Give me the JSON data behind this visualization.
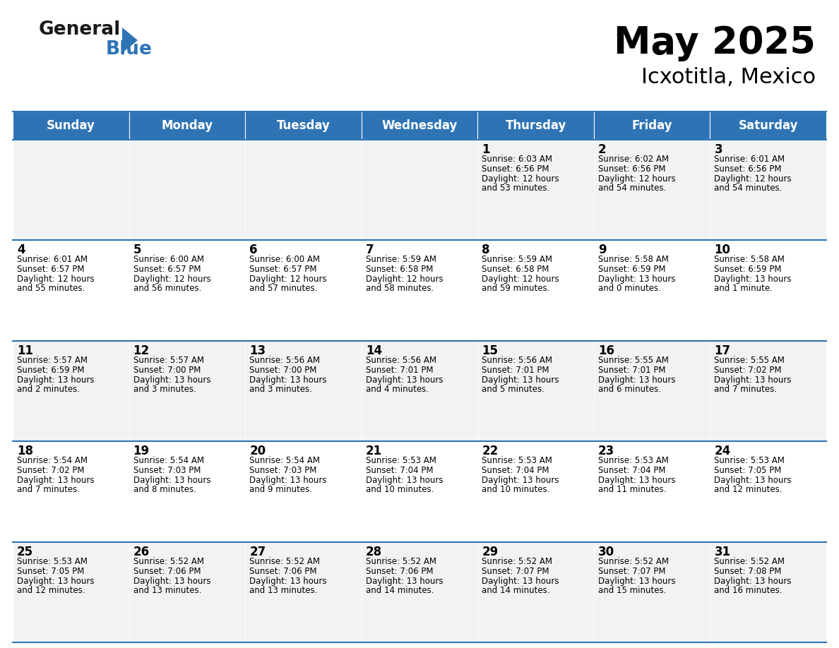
{
  "title": "May 2025",
  "subtitle": "Icxotitla, Mexico",
  "header_bg": "#2E74B5",
  "header_text_color": "#FFFFFF",
  "cell_bg_odd": "#F2F2F2",
  "cell_bg_even": "#FFFFFF",
  "border_color": "#2E74B5",
  "days_of_week": [
    "Sunday",
    "Monday",
    "Tuesday",
    "Wednesday",
    "Thursday",
    "Friday",
    "Saturday"
  ],
  "calendar_data": [
    [
      "",
      "",
      "",
      "",
      "1",
      "2",
      "3"
    ],
    [
      "4",
      "5",
      "6",
      "7",
      "8",
      "9",
      "10"
    ],
    [
      "11",
      "12",
      "13",
      "14",
      "15",
      "16",
      "17"
    ],
    [
      "18",
      "19",
      "20",
      "21",
      "22",
      "23",
      "24"
    ],
    [
      "25",
      "26",
      "27",
      "28",
      "29",
      "30",
      "31"
    ]
  ],
  "sun_data": [
    [
      "",
      "",
      "",
      "",
      "6:03 AM",
      "6:02 AM",
      "6:01 AM"
    ],
    [
      "6:01 AM",
      "6:00 AM",
      "6:00 AM",
      "5:59 AM",
      "5:59 AM",
      "5:58 AM",
      "5:58 AM"
    ],
    [
      "5:57 AM",
      "5:57 AM",
      "5:56 AM",
      "5:56 AM",
      "5:56 AM",
      "5:55 AM",
      "5:55 AM"
    ],
    [
      "5:54 AM",
      "5:54 AM",
      "5:54 AM",
      "5:53 AM",
      "5:53 AM",
      "5:53 AM",
      "5:53 AM"
    ],
    [
      "5:53 AM",
      "5:52 AM",
      "5:52 AM",
      "5:52 AM",
      "5:52 AM",
      "5:52 AM",
      "5:52 AM"
    ]
  ],
  "set_data": [
    [
      "",
      "",
      "",
      "",
      "6:56 PM",
      "6:56 PM",
      "6:56 PM"
    ],
    [
      "6:57 PM",
      "6:57 PM",
      "6:57 PM",
      "6:58 PM",
      "6:58 PM",
      "6:59 PM",
      "6:59 PM"
    ],
    [
      "6:59 PM",
      "7:00 PM",
      "7:00 PM",
      "7:01 PM",
      "7:01 PM",
      "7:01 PM",
      "7:02 PM"
    ],
    [
      "7:02 PM",
      "7:03 PM",
      "7:03 PM",
      "7:04 PM",
      "7:04 PM",
      "7:04 PM",
      "7:05 PM"
    ],
    [
      "7:05 PM",
      "7:06 PM",
      "7:06 PM",
      "7:06 PM",
      "7:07 PM",
      "7:07 PM",
      "7:08 PM"
    ]
  ],
  "daylight_data": [
    [
      "",
      "",
      "",
      "",
      "12 hours\nand 53 minutes.",
      "12 hours\nand 54 minutes.",
      "12 hours\nand 54 minutes."
    ],
    [
      "12 hours\nand 55 minutes.",
      "12 hours\nand 56 minutes.",
      "12 hours\nand 57 minutes.",
      "12 hours\nand 58 minutes.",
      "12 hours\nand 59 minutes.",
      "13 hours\nand 0 minutes.",
      "13 hours\nand 1 minute."
    ],
    [
      "13 hours\nand 2 minutes.",
      "13 hours\nand 3 minutes.",
      "13 hours\nand 3 minutes.",
      "13 hours\nand 4 minutes.",
      "13 hours\nand 5 minutes.",
      "13 hours\nand 6 minutes.",
      "13 hours\nand 7 minutes."
    ],
    [
      "13 hours\nand 7 minutes.",
      "13 hours\nand 8 minutes.",
      "13 hours\nand 9 minutes.",
      "13 hours\nand 10 minutes.",
      "13 hours\nand 10 minutes.",
      "13 hours\nand 11 minutes.",
      "13 hours\nand 12 minutes."
    ],
    [
      "13 hours\nand 12 minutes.",
      "13 hours\nand 13 minutes.",
      "13 hours\nand 13 minutes.",
      "13 hours\nand 14 minutes.",
      "13 hours\nand 14 minutes.",
      "13 hours\nand 15 minutes.",
      "13 hours\nand 16 minutes."
    ]
  ],
  "title_fontsize": 38,
  "subtitle_fontsize": 22,
  "day_header_fontsize": 12,
  "cell_number_fontsize": 12,
  "cell_text_fontsize": 8.5
}
